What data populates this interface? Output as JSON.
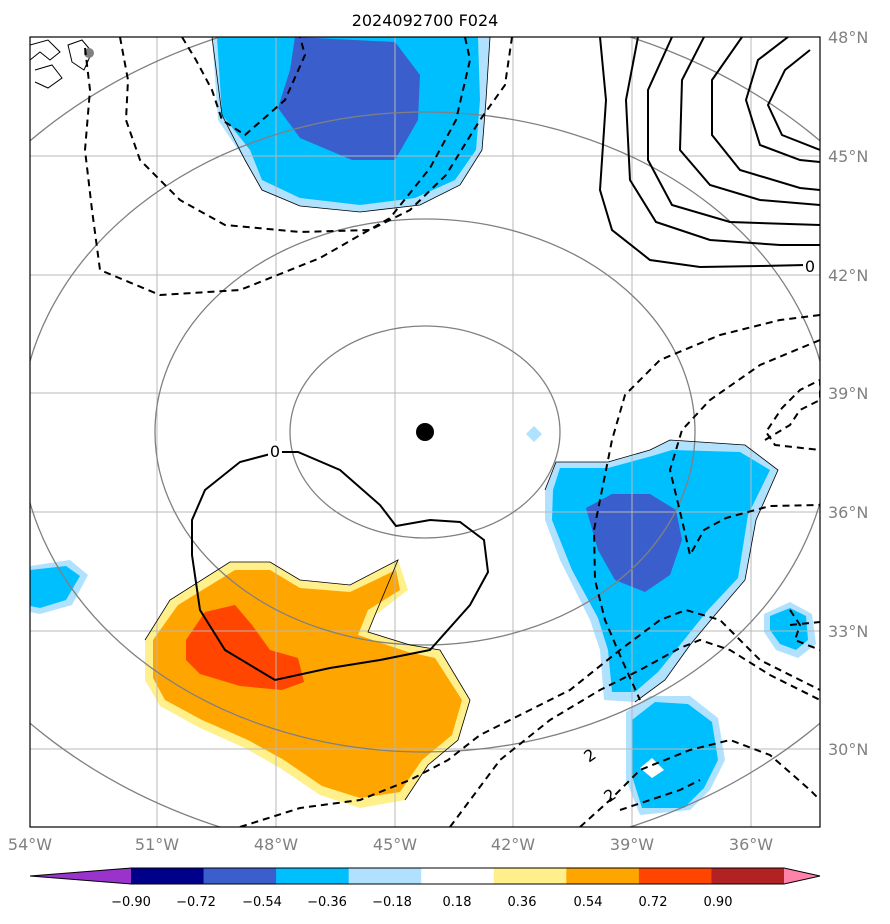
{
  "title": "2024092700 F024",
  "map": {
    "lon_labels": [
      "54°W",
      "51°W",
      "48°W",
      "45°W",
      "42°W",
      "39°W",
      "36°W"
    ],
    "lat_labels": [
      "48°N",
      "45°N",
      "42°N",
      "39°N",
      "36°N",
      "33°N",
      "30°N"
    ],
    "center_marker": {
      "lon": -44.3,
      "lat": 38.0
    },
    "contour_labels": [
      "0",
      "0",
      "2",
      "2"
    ],
    "grid": "on"
  },
  "colorbar": {
    "ticks": [
      "−0.90",
      "−0.72",
      "−0.54",
      "−0.36",
      "−0.18",
      "0.18",
      "0.36",
      "0.54",
      "0.72",
      "0.90"
    ],
    "colors": [
      "#9933cc",
      "#00008b",
      "#3a5fcd",
      "#00bfff",
      "#b0e2ff",
      "#ffffff",
      "#fff08c",
      "#ffa500",
      "#ff4500",
      "#b22222",
      "#ff82ab"
    ],
    "extend": "both"
  }
}
